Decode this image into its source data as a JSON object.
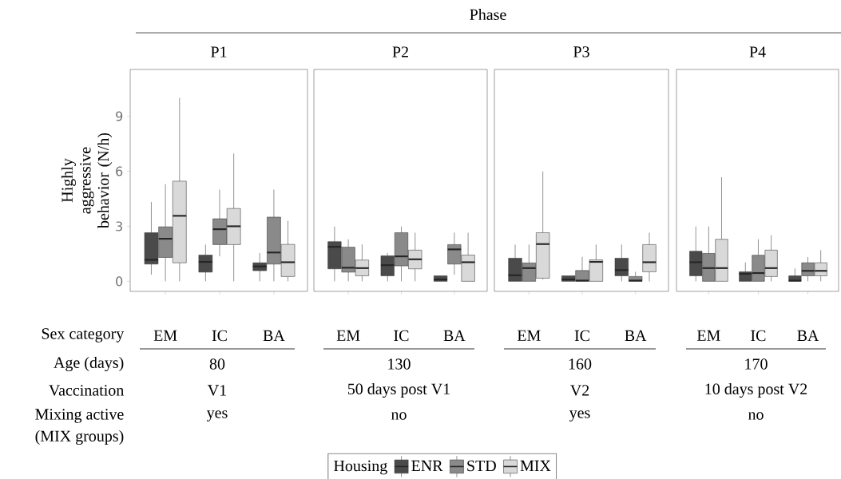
{
  "chart_data": [
    {
      "type": "box",
      "title": "P1",
      "ylabel": "Highly aggressive behavior (N/h)",
      "categories": [
        "EM",
        "IC",
        "BA"
      ],
      "ylim": [
        -0.55,
        11.55
      ],
      "yticks": [
        0,
        3,
        6,
        9
      ],
      "legend": "bottom",
      "legend_title": "Housing",
      "annotations": [
        "Phase",
        "Sex category",
        "Age (days)",
        "Vaccination",
        "Mixing active",
        "(MIX groups)",
        "80",
        "V1",
        "yes"
      ],
      "series": [
        {
          "name": "ENR",
          "color": "#4a4a4a",
          "boxes": [
            {
              "low": 0.36,
              "q1": 0.94,
              "median": 1.17,
              "q3": 2.65,
              "high": 4.32
            },
            {
              "low": 0,
              "q1": 0.5,
              "median": 1.06,
              "q3": 1.43,
              "high": 2.0
            },
            {
              "low": 0,
              "q1": 0.58,
              "median": 0.81,
              "q3": 1.01,
              "high": 1.54
            }
          ]
        },
        {
          "name": "STD",
          "color": "#8a8a8a",
          "boxes": [
            {
              "low": 0,
              "q1": 1.3,
              "median": 2.32,
              "q3": 2.97,
              "high": 5.3
            },
            {
              "low": 1.36,
              "q1": 2.0,
              "median": 2.84,
              "q3": 3.41,
              "high": 5.0
            },
            {
              "low": 0,
              "q1": 0.94,
              "median": 1.57,
              "q3": 3.5,
              "high": 5.0
            }
          ]
        },
        {
          "name": "MIX",
          "color": "#d9d9d9",
          "boxes": [
            {
              "low": 0,
              "q1": 1.01,
              "median": 3.57,
              "q3": 5.46,
              "high": 10.0
            },
            {
              "low": 0,
              "q1": 2.0,
              "median": 3.0,
              "q3": 3.97,
              "high": 6.97
            },
            {
              "low": 0,
              "q1": 0.26,
              "median": 1.04,
              "q3": 2.01,
              "high": 3.3
            }
          ]
        }
      ]
    },
    {
      "type": "box",
      "title": "P2",
      "categories": [
        "EM",
        "IC",
        "BA"
      ],
      "ylim": [
        -0.55,
        11.55
      ],
      "tick_labels": "x",
      "annotations": [
        "130",
        "50 days post V1",
        "no"
      ],
      "series": [
        {
          "color": "#4a4a4a",
          "boxes": [
            {
              "low": 0,
              "q1": 0.68,
              "median": 1.88,
              "q3": 2.16,
              "high": 2.99
            },
            {
              "low": 0,
              "q1": 0.3,
              "median": 0.88,
              "q3": 1.39,
              "high": 1.54
            },
            {
              "low": 0,
              "q1": 0,
              "median": 0.1,
              "q3": 0.3,
              "high": 0.3
            }
          ]
        },
        {
          "color": "#8a8a8a",
          "boxes": [
            {
              "low": 0,
              "q1": 0.5,
              "median": 0.74,
              "q3": 1.86,
              "high": 2.29
            },
            {
              "low": 0,
              "q1": 0.84,
              "median": 1.36,
              "q3": 2.65,
              "high": 2.99
            },
            {
              "low": 0.36,
              "q1": 0.94,
              "median": 1.74,
              "q3": 2.0,
              "high": 2.65
            }
          ]
        },
        {
          "color": "#d9d9d9",
          "boxes": [
            {
              "low": 0,
              "q1": 0.3,
              "median": 0.72,
              "q3": 1.16,
              "high": 2.01
            },
            {
              "low": 0,
              "q1": 0.68,
              "median": 1.2,
              "q3": 1.7,
              "high": 2.65
            },
            {
              "low": 0,
              "q1": 0,
              "median": 1.04,
              "q3": 1.43,
              "high": 2.65
            }
          ]
        }
      ]
    },
    {
      "type": "box",
      "title": "P3",
      "categories": [
        "EM",
        "IC",
        "BA"
      ],
      "ylim": [
        -0.55,
        11.55
      ],
      "tick_labels": "x",
      "annotations": [
        "160",
        "V2",
        "yes"
      ],
      "series": [
        {
          "color": "#4a4a4a",
          "boxes": [
            {
              "low": 0,
              "q1": 0,
              "median": 0.33,
              "q3": 1.26,
              "high": 2.0
            },
            {
              "low": 0,
              "q1": 0,
              "median": 0.1,
              "q3": 0.3,
              "high": 0.3
            },
            {
              "low": 0,
              "q1": 0.3,
              "median": 0.61,
              "q3": 1.26,
              "high": 2.0
            }
          ]
        },
        {
          "color": "#8a8a8a",
          "boxes": [
            {
              "low": 0,
              "q1": 0,
              "median": 0.72,
              "q3": 1.0,
              "high": 2.0
            },
            {
              "low": 0,
              "q1": 0,
              "median": 0.04,
              "q3": 0.59,
              "high": 1.33
            },
            {
              "low": 0,
              "q1": 0,
              "median": 0.04,
              "q3": 0.26,
              "high": 0.52
            }
          ]
        },
        {
          "color": "#d9d9d9",
          "boxes": [
            {
              "low": 0.09,
              "q1": 0.17,
              "median": 2.03,
              "q3": 2.65,
              "high": 5.99
            },
            {
              "low": 0,
              "q1": 0,
              "median": 1.06,
              "q3": 1.17,
              "high": 2.0
            },
            {
              "low": 0,
              "q1": 0.52,
              "median": 1.04,
              "q3": 2.0,
              "high": 2.65
            }
          ]
        }
      ]
    },
    {
      "type": "box",
      "title": "P4",
      "categories": [
        "EM",
        "IC",
        "BA"
      ],
      "ylim": [
        -0.55,
        11.55
      ],
      "tick_labels": "x",
      "annotations": [
        "170",
        "10 days post V2",
        "no"
      ],
      "series": [
        {
          "color": "#4a4a4a",
          "boxes": [
            {
              "low": 0,
              "q1": 0.3,
              "median": 1.04,
              "q3": 1.64,
              "high": 2.99
            },
            {
              "low": 0,
              "q1": 0,
              "median": 0.41,
              "q3": 0.52,
              "high": 1.03
            },
            {
              "low": 0,
              "q1": 0,
              "median": 0.04,
              "q3": 0.3,
              "high": 0.7
            }
          ]
        },
        {
          "color": "#8a8a8a",
          "boxes": [
            {
              "low": 0,
              "q1": 0,
              "median": 0.72,
              "q3": 1.52,
              "high": 2.99
            },
            {
              "low": 0,
              "q1": 0,
              "median": 0.45,
              "q3": 1.42,
              "high": 2.29
            },
            {
              "low": 0,
              "q1": 0.3,
              "median": 0.57,
              "q3": 1.01,
              "high": 1.32
            }
          ]
        },
        {
          "color": "#d9d9d9",
          "boxes": [
            {
              "low": 0,
              "q1": 0,
              "median": 0.72,
              "q3": 2.29,
              "high": 5.67
            },
            {
              "low": 0,
              "q1": 0.26,
              "median": 0.72,
              "q3": 1.7,
              "high": 2.51
            },
            {
              "low": 0,
              "q1": 0.3,
              "median": 0.57,
              "q3": 1.01,
              "high": 1.7
            }
          ]
        }
      ]
    }
  ]
}
